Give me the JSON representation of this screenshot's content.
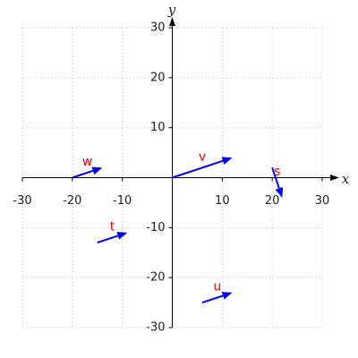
{
  "chart_data": {
    "type": "quiver",
    "xlabel": "x",
    "ylabel": "y",
    "xlim": [
      -30,
      30
    ],
    "ylim": [
      -30,
      30
    ],
    "xticks": [
      -30,
      -20,
      -10,
      10,
      20,
      30
    ],
    "yticks": [
      -30,
      -20,
      -10,
      10,
      20,
      30
    ],
    "grid": true,
    "color": "#0000ee",
    "label_color": "#ee0000",
    "vectors": [
      {
        "name": "w",
        "x": -20,
        "y": 0,
        "dx": 6,
        "dy": 2
      },
      {
        "name": "v",
        "x": 0,
        "y": 0,
        "dx": 12,
        "dy": 4
      },
      {
        "name": "s",
        "x": 20,
        "y": 2,
        "dx": 2,
        "dy": -6
      },
      {
        "name": "t",
        "x": -15,
        "y": -13,
        "dx": 6,
        "dy": 2
      },
      {
        "name": "u",
        "x": 6,
        "y": -25,
        "dx": 6,
        "dy": 2
      }
    ]
  }
}
